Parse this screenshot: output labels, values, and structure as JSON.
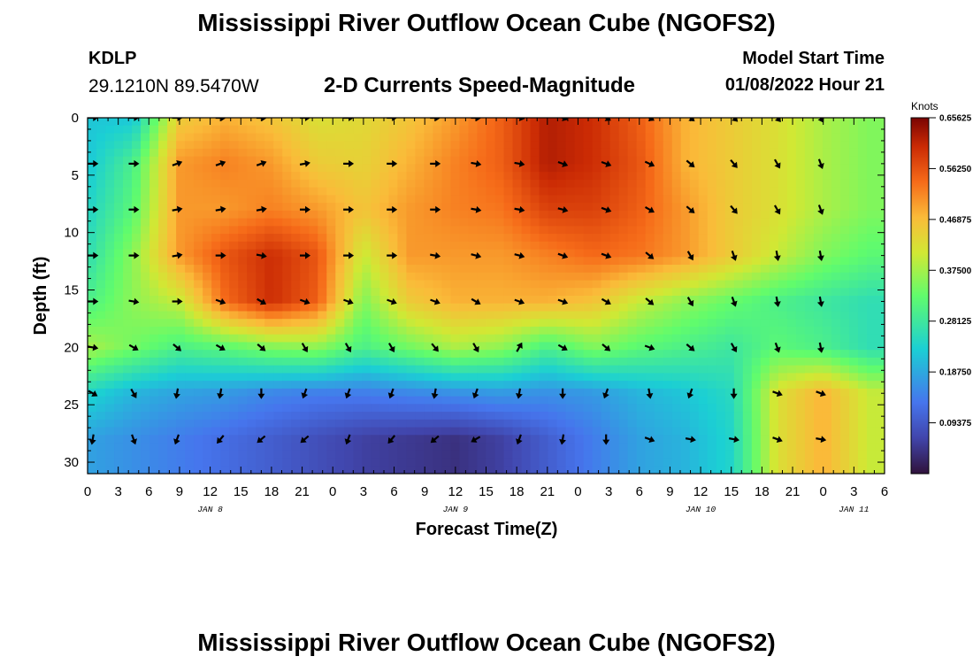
{
  "header": {
    "title": "Mississippi River Outflow Ocean Cube (NGOFS2)",
    "station": "KDLP",
    "coordinates": "29.1210N  89.5470W",
    "subtitle": "2-D Currents Speed-Magnitude",
    "model_start_label": "Model Start Time",
    "model_start_value": "01/08/2022 Hour 21"
  },
  "footer": {
    "title": "Mississippi River Outflow Ocean Cube (NGOFS2)"
  },
  "chart_data": {
    "type": "heatmap",
    "title": "2-D Currents Speed-Magnitude",
    "xlabel": "Forecast Time(Z)",
    "ylabel": "Depth (ft)",
    "x_range_hours": [
      0,
      78
    ],
    "ylim": [
      0,
      31
    ],
    "y_ticks": [
      0,
      5,
      10,
      15,
      20,
      25,
      30
    ],
    "x_tick_labels": [
      "0",
      "3",
      "6",
      "9",
      "12",
      "15",
      "18",
      "21",
      "0",
      "3",
      "6",
      "9",
      "12",
      "15",
      "18",
      "21",
      "0",
      "3",
      "6",
      "9",
      "12",
      "15",
      "18",
      "21",
      "0",
      "3",
      "6"
    ],
    "date_labels": [
      {
        "hour": 12,
        "label": "JAN 8"
      },
      {
        "hour": 36,
        "label": "JAN 9"
      },
      {
        "hour": 60,
        "label": "JAN 10"
      },
      {
        "hour": 75,
        "label": "JAN 11"
      }
    ],
    "colorbar": {
      "label": "Knots",
      "min": 0.0,
      "max": 0.65625,
      "tick_labels": [
        "0.65625",
        "0.56250",
        "0.46875",
        "0.37500",
        "0.28125",
        "0.18750",
        "0.09375"
      ],
      "tick_values": [
        0.65625,
        0.5625,
        0.46875,
        0.375,
        0.28125,
        0.1875,
        0.09375
      ]
    },
    "grid_times": [
      0,
      4.5,
      9,
      13.5,
      18,
      22.5,
      27,
      31.5,
      36,
      40.5,
      45,
      49.5,
      54,
      58.5,
      63,
      67.5,
      72,
      76.5
    ],
    "grid_depths": [
      0,
      4,
      8,
      12,
      16,
      20,
      24,
      28
    ],
    "speed_knots": [
      [
        0.22,
        0.22,
        0.45,
        0.48,
        0.46,
        0.42,
        0.43,
        0.46,
        0.5,
        0.55,
        0.62,
        0.6,
        0.55,
        0.48,
        0.45,
        0.42,
        0.38,
        0.35
      ],
      [
        0.22,
        0.3,
        0.5,
        0.52,
        0.5,
        0.45,
        0.44,
        0.48,
        0.52,
        0.55,
        0.62,
        0.6,
        0.56,
        0.48,
        0.45,
        0.42,
        0.38,
        0.35
      ],
      [
        0.24,
        0.32,
        0.5,
        0.5,
        0.52,
        0.5,
        0.46,
        0.5,
        0.52,
        0.53,
        0.58,
        0.58,
        0.55,
        0.5,
        0.45,
        0.42,
        0.38,
        0.35
      ],
      [
        0.26,
        0.36,
        0.5,
        0.56,
        0.6,
        0.56,
        0.4,
        0.5,
        0.5,
        0.5,
        0.52,
        0.54,
        0.53,
        0.5,
        0.45,
        0.4,
        0.35,
        0.32
      ],
      [
        0.3,
        0.36,
        0.4,
        0.54,
        0.6,
        0.55,
        0.35,
        0.45,
        0.48,
        0.48,
        0.48,
        0.46,
        0.4,
        0.36,
        0.33,
        0.3,
        0.28,
        0.26
      ],
      [
        0.38,
        0.34,
        0.3,
        0.32,
        0.35,
        0.36,
        0.3,
        0.34,
        0.38,
        0.36,
        0.3,
        0.35,
        0.32,
        0.3,
        0.28,
        0.32,
        0.3,
        0.26
      ],
      [
        0.24,
        0.2,
        0.18,
        0.17,
        0.15,
        0.14,
        0.14,
        0.15,
        0.16,
        0.17,
        0.16,
        0.17,
        0.2,
        0.22,
        0.25,
        0.42,
        0.48,
        0.4
      ],
      [
        0.18,
        0.16,
        0.14,
        0.12,
        0.1,
        0.08,
        0.06,
        0.05,
        0.04,
        0.06,
        0.1,
        0.14,
        0.18,
        0.2,
        0.24,
        0.42,
        0.48,
        0.4
      ]
    ],
    "arrow_times": [
      0.5,
      4.5,
      8.75,
      13,
      17,
      21.25,
      25.5,
      29.75,
      34,
      38,
      42.25,
      46.5,
      50.75,
      55,
      59,
      63.25,
      67.5,
      71.75
    ],
    "arrow_depths": [
      0,
      4,
      8,
      12,
      16,
      20,
      24,
      28
    ],
    "arrow_direction_deg": [
      [
        0,
        0,
        0,
        0,
        0,
        0,
        0,
        0,
        0,
        0,
        10,
        20,
        30,
        30,
        40,
        45,
        50,
        60
      ],
      [
        0,
        0,
        -20,
        -20,
        -20,
        -10,
        0,
        0,
        0,
        10,
        10,
        20,
        20,
        25,
        40,
        50,
        60,
        70
      ],
      [
        0,
        0,
        -10,
        -10,
        -10,
        0,
        0,
        0,
        0,
        10,
        10,
        15,
        20,
        30,
        40,
        50,
        60,
        70
      ],
      [
        0,
        0,
        -10,
        0,
        10,
        0,
        0,
        0,
        10,
        15,
        15,
        20,
        20,
        40,
        60,
        70,
        80,
        80
      ],
      [
        0,
        10,
        0,
        20,
        30,
        20,
        20,
        20,
        20,
        30,
        20,
        20,
        30,
        40,
        60,
        70,
        80,
        80
      ],
      [
        10,
        30,
        40,
        30,
        40,
        60,
        60,
        60,
        50,
        60,
        -60,
        30,
        40,
        20,
        40,
        60,
        70,
        80
      ],
      [
        30,
        60,
        100,
        100,
        90,
        110,
        110,
        110,
        100,
        110,
        100,
        90,
        110,
        80,
        110,
        90,
        20,
        20
      ],
      [
        100,
        70,
        110,
        130,
        140,
        140,
        110,
        130,
        140,
        150,
        110,
        100,
        90,
        20,
        10,
        10,
        20,
        10
      ]
    ]
  }
}
